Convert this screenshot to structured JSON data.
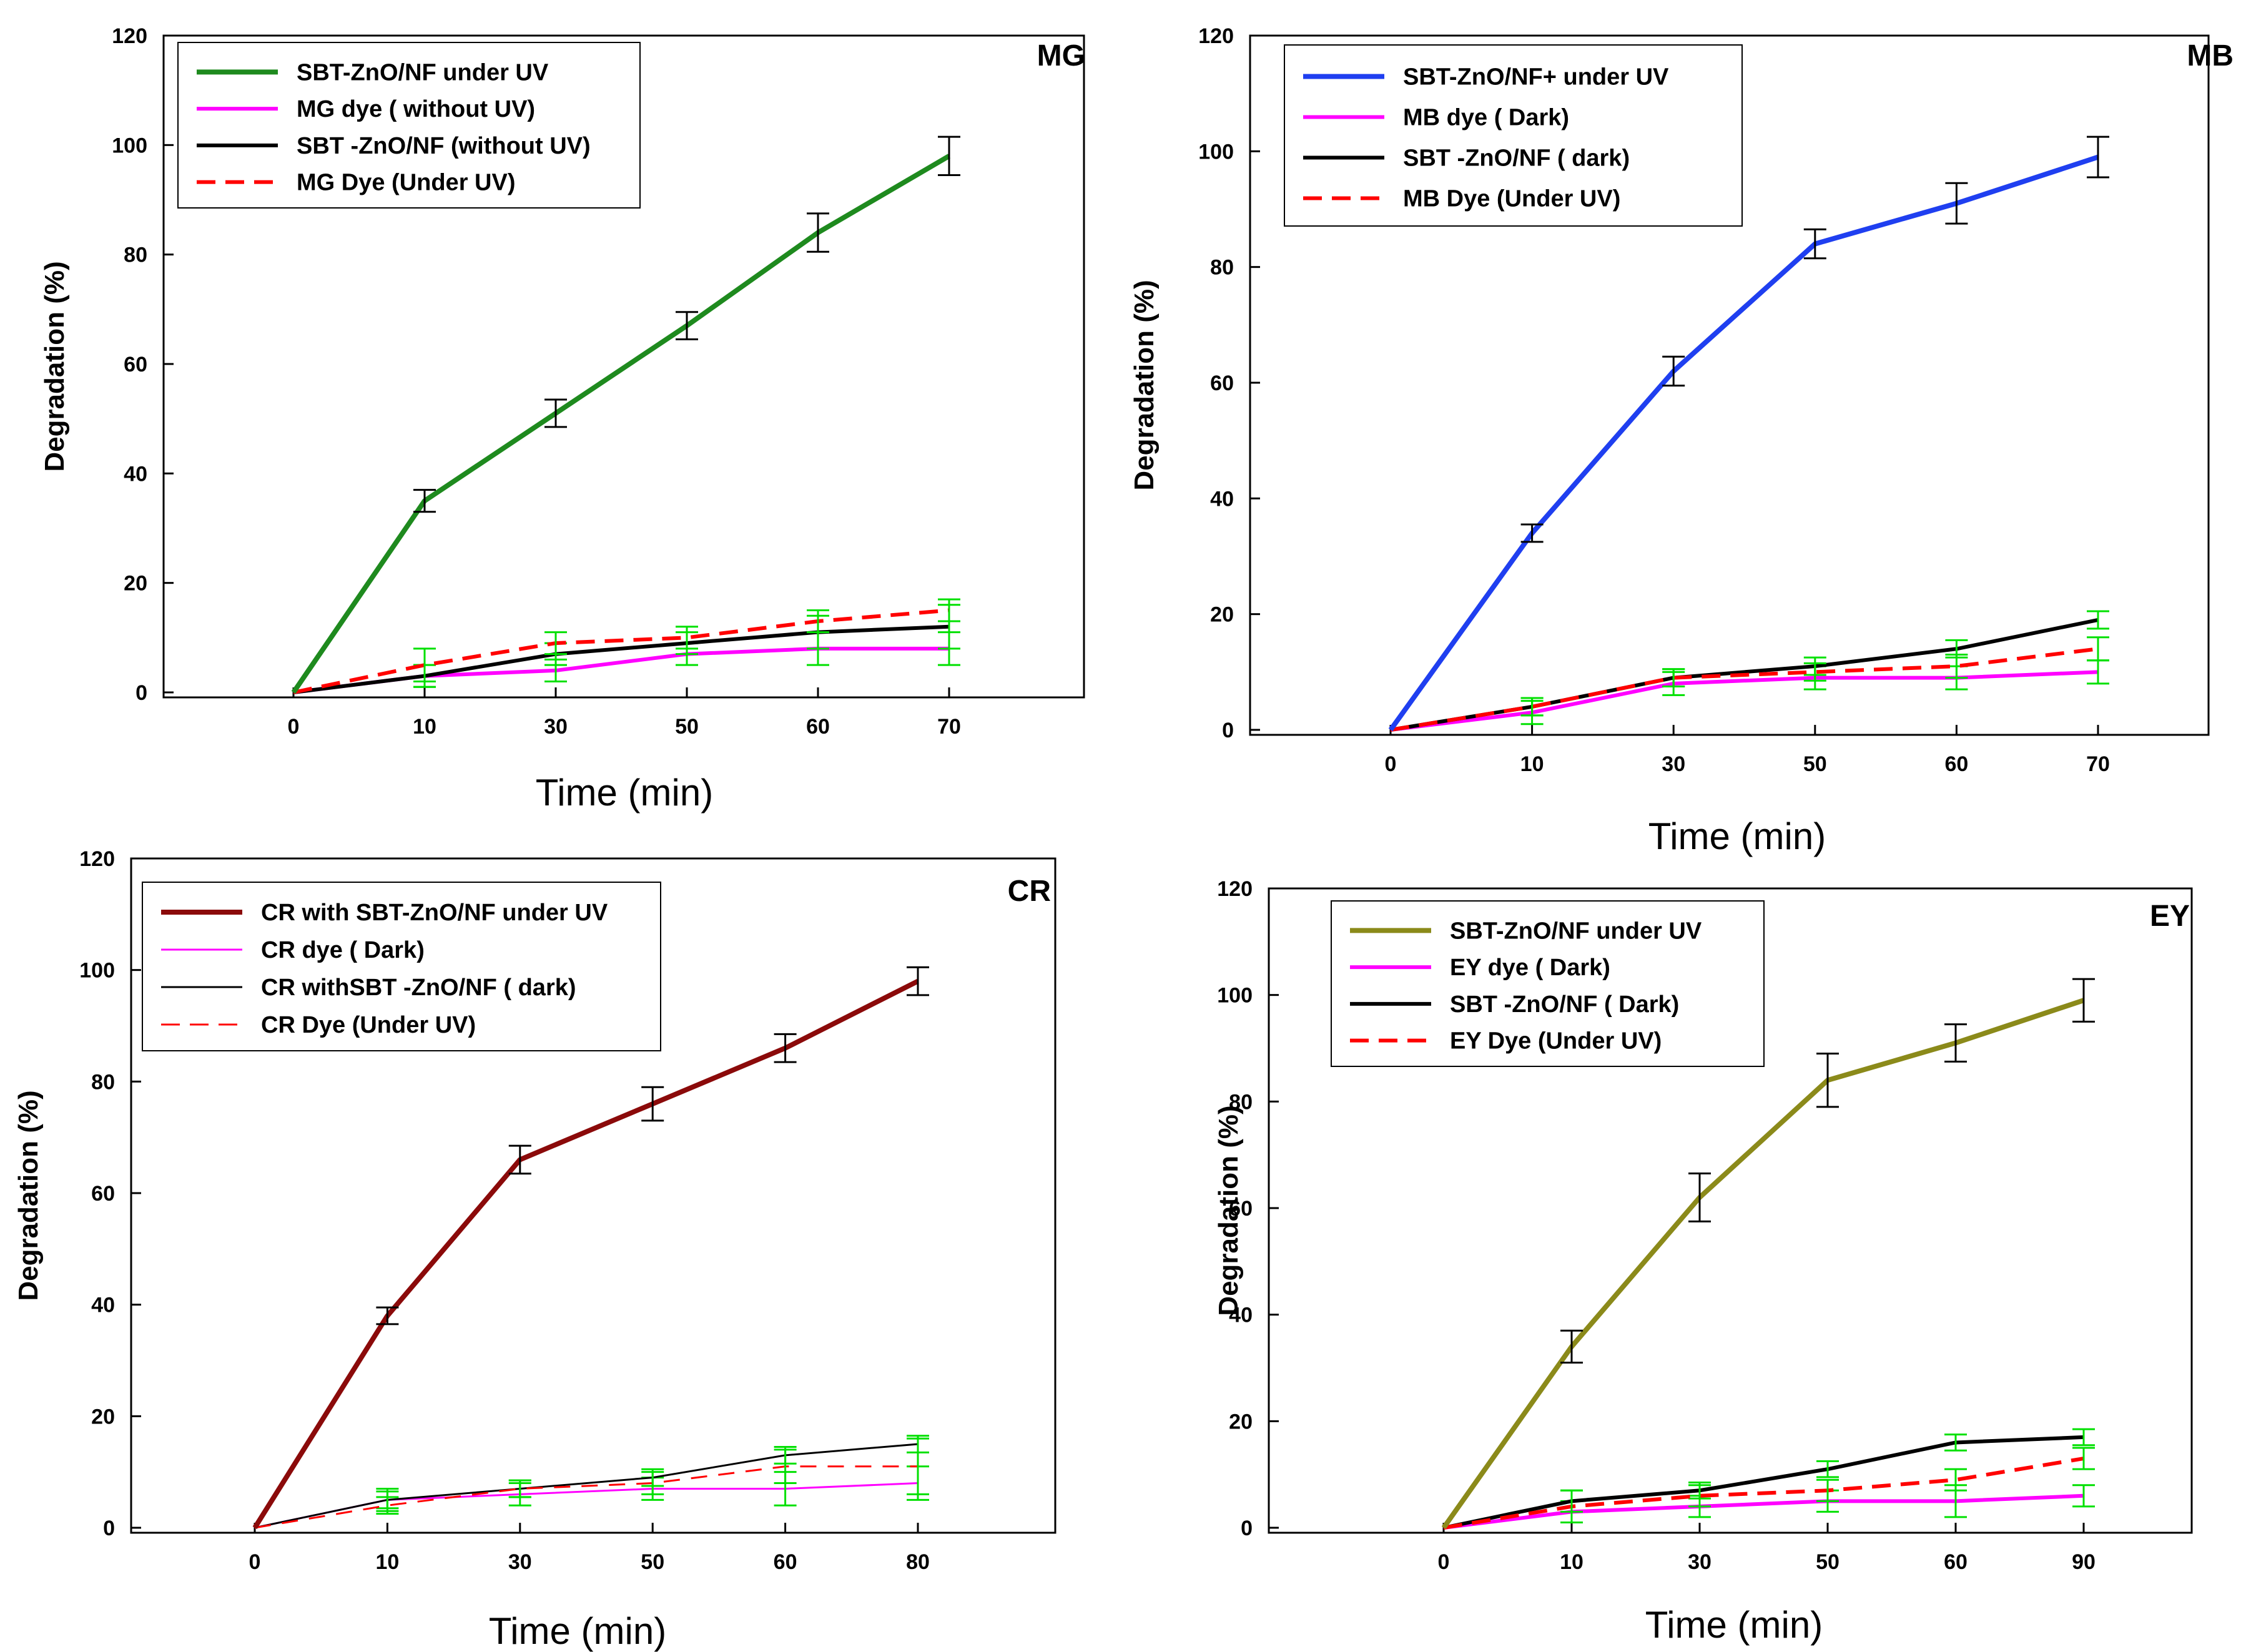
{
  "figure": {
    "background": "#ffffff"
  },
  "chart_data": [
    {
      "type": "line",
      "tag": "MG",
      "xlabel": "Time (min)",
      "ylabel": "Degradation (%)",
      "ylim": [
        0,
        120
      ],
      "yticks": [
        "0",
        "20",
        "40",
        "60",
        "80",
        "100",
        "120"
      ],
      "categories": [
        "0",
        "10",
        "30",
        "50",
        "60",
        "70"
      ],
      "series": [
        {
          "name": "SBT-ZnO/NF under UV",
          "color": "#1e8a1e",
          "dash": false,
          "width": "thick",
          "values": [
            0,
            35,
            51,
            67,
            84,
            98
          ],
          "errors": [
            0,
            2,
            2.5,
            2.5,
            3.5,
            3.5
          ],
          "err_color": "#000000"
        },
        {
          "name": "MG dye ( without UV)",
          "color": "#ff00ff",
          "dash": false,
          "width": "thick",
          "values": [
            0,
            3,
            4,
            7,
            8,
            8
          ],
          "errors": [
            0,
            2,
            2,
            2,
            3,
            3
          ],
          "err_color": "#00e000"
        },
        {
          "name": "SBT -ZnO/NF (without UV)",
          "color": "#000000",
          "dash": false,
          "width": "thick",
          "values": [
            0,
            3,
            7,
            9,
            11,
            12
          ],
          "errors": [
            0,
            2,
            2,
            2,
            3,
            4
          ],
          "err_color": "#00e000"
        },
        {
          "name": "MG Dye (Under UV)",
          "color": "#ff0000",
          "dash": true,
          "width": "thick",
          "values": [
            0,
            5,
            9,
            10,
            13,
            15
          ],
          "errors": [
            0,
            3,
            2,
            2,
            2,
            2
          ],
          "err_color": "#00e000"
        }
      ]
    },
    {
      "type": "line",
      "tag": "MB",
      "xlabel": "Time (min)",
      "ylabel": "Degradation (%)",
      "ylim": [
        0,
        120
      ],
      "yticks": [
        "0",
        "20",
        "40",
        "60",
        "80",
        "100",
        "120"
      ],
      "categories": [
        "0",
        "10",
        "30",
        "50",
        "60",
        "70"
      ],
      "series": [
        {
          "name": "SBT-ZnO/NF+ under UV",
          "color": "#1f3ff0",
          "dash": false,
          "width": "thick",
          "values": [
            0,
            34,
            62,
            84,
            91,
            99
          ],
          "errors": [
            0,
            1.5,
            2.5,
            2.5,
            3.5,
            3.5
          ],
          "err_color": "#000000"
        },
        {
          "name": "MB dye ( Dark)",
          "color": "#ff00ff",
          "dash": false,
          "width": "thick",
          "values": [
            0,
            3,
            8,
            9,
            9,
            10
          ],
          "errors": [
            0,
            2,
            2,
            2,
            2,
            2
          ],
          "err_color": "#00e000"
        },
        {
          "name": "SBT -ZnO/NF ( dark)",
          "color": "#000000",
          "dash": false,
          "width": "thick",
          "values": [
            0,
            4,
            9,
            11,
            14,
            19
          ],
          "errors": [
            0,
            1.5,
            1.5,
            1.5,
            1.5,
            1.5
          ],
          "err_color": "#00e000"
        },
        {
          "name": "MB Dye (Under UV)",
          "color": "#ff0000",
          "dash": true,
          "width": "thick",
          "values": [
            0,
            4,
            9,
            10,
            11,
            14
          ],
          "errors": [
            0,
            1.5,
            1.5,
            1.5,
            2,
            2
          ],
          "err_color": "#00e000"
        }
      ]
    },
    {
      "type": "line",
      "tag": "CR",
      "xlabel": "Time (min)",
      "ylabel": "Degradation (%)",
      "ylim": [
        0,
        120
      ],
      "yticks": [
        "0",
        "20",
        "40",
        "60",
        "80",
        "100",
        "120"
      ],
      "categories": [
        "0",
        "10",
        "30",
        "50",
        "60",
        "80"
      ],
      "series": [
        {
          "name": "CR with SBT-ZnO/NF under UV",
          "color": "#8b0a0a",
          "dash": false,
          "width": "thick",
          "values": [
            0,
            38,
            66,
            76,
            86,
            98
          ],
          "errors": [
            0,
            1.5,
            2.5,
            3,
            2.5,
            2.5
          ],
          "err_color": "#000000"
        },
        {
          "name": "CR dye ( Dark)",
          "color": "#ff00ff",
          "dash": false,
          "width": "thin",
          "values": [
            0,
            5,
            6,
            7,
            7,
            8
          ],
          "errors": [
            0,
            2,
            2,
            2,
            3,
            3
          ],
          "err_color": "#00e000"
        },
        {
          "name": "CR withSBT -ZnO/NF ( dark)",
          "color": "#000000",
          "dash": false,
          "width": "thin",
          "values": [
            0,
            5,
            7,
            9,
            13,
            15
          ],
          "errors": [
            0,
            1.5,
            1.5,
            1.5,
            1.5,
            1.5
          ],
          "err_color": "#00e000"
        },
        {
          "name": "CR Dye (Under UV)",
          "color": "#ff0000",
          "dash": true,
          "width": "thin",
          "values": [
            0,
            4,
            7,
            8,
            11,
            11
          ],
          "errors": [
            0,
            1.5,
            1.5,
            2,
            3,
            5
          ],
          "err_color": "#00e000"
        }
      ]
    },
    {
      "type": "line",
      "tag": "EY",
      "xlabel": "Time (min)",
      "ylabel": "Degradation (%)",
      "ylim": [
        0,
        120
      ],
      "yticks": [
        "0",
        "20",
        "40",
        "60",
        "80",
        "100",
        "120"
      ],
      "categories": [
        "0",
        "10",
        "30",
        "50",
        "60",
        "90"
      ],
      "series": [
        {
          "name": "SBT-ZnO/NF under UV",
          "color": "#8b8a1a",
          "dash": false,
          "width": "thick",
          "values": [
            0,
            34,
            62,
            84,
            91,
            99
          ],
          "errors": [
            0,
            3,
            4.5,
            5,
            3.5,
            4
          ],
          "err_color": "#000000"
        },
        {
          "name": "EY dye ( Dark)",
          "color": "#ff00ff",
          "dash": false,
          "width": "thick",
          "values": [
            0,
            3,
            4,
            5,
            5,
            6
          ],
          "errors": [
            0,
            2,
            2,
            2,
            3,
            2
          ],
          "err_color": "#00e000"
        },
        {
          "name": "SBT -ZnO/NF ( Dark)",
          "color": "#000000",
          "dash": false,
          "width": "thick",
          "values": [
            0,
            5,
            7,
            11,
            16,
            17
          ],
          "errors": [
            0,
            2,
            1.5,
            1.5,
            1.5,
            1.5
          ],
          "err_color": "#00e000"
        },
        {
          "name": "EY Dye (Under UV)",
          "color": "#ff0000",
          "dash": true,
          "width": "thick",
          "values": [
            0,
            4,
            6,
            7,
            9,
            13
          ],
          "errors": [
            0,
            3,
            2,
            2,
            2,
            2
          ],
          "err_color": "#00e000"
        }
      ]
    }
  ]
}
